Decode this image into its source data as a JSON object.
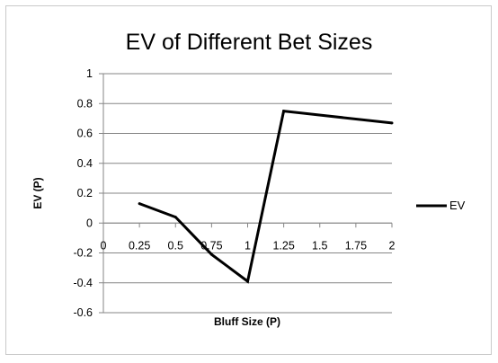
{
  "chart_data": {
    "type": "line",
    "title": "EV of Different Bet Sizes",
    "xlabel": "Bluff Size (P)",
    "ylabel": "EV (P)",
    "ylim": [
      -0.6,
      1
    ],
    "xlim": [
      0,
      2
    ],
    "yticks": [
      "1",
      "0.8",
      "0.6",
      "0.4",
      "0.2",
      "0",
      "-0.2",
      "-0.4",
      "-0.6"
    ],
    "xticks": [
      "0",
      "0.25",
      "0.5",
      "0.75",
      "1",
      "1.25",
      "1.5",
      "1.75",
      "2"
    ],
    "grid": "horizontal",
    "legend_position": "right",
    "series": [
      {
        "name": "EV",
        "color": "#000000",
        "x": [
          0.25,
          0.5,
          0.75,
          1,
          1.25,
          2
        ],
        "y": [
          0.13,
          0.04,
          -0.21,
          -0.39,
          0.75,
          0.67
        ]
      }
    ]
  }
}
